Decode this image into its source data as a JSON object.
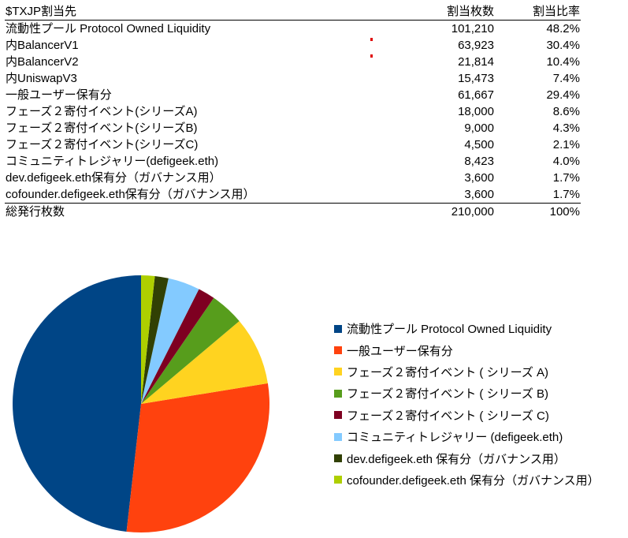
{
  "table": {
    "headers": {
      "name": "$TXJP割当先",
      "qty": "割当枚数",
      "pct": "割当比率"
    },
    "rows": [
      {
        "name": "流動性プール Protocol Owned Liquidity",
        "qty": "101,210",
        "pct": "48.2%",
        "sub": false
      },
      {
        "name": "内BalancerV1",
        "qty": "63,923",
        "pct": "30.4%",
        "sub": true
      },
      {
        "name": "内BalancerV2",
        "qty": "21,814",
        "pct": "10.4%",
        "sub": true
      },
      {
        "name": "内UniswapV3",
        "qty": "15,473",
        "pct": "7.4%",
        "sub": true
      },
      {
        "name": "一般ユーザー保有分",
        "qty": "61,667",
        "pct": "29.4%",
        "sub": false
      },
      {
        "name": "フェーズ２寄付イベント(シリーズA)",
        "qty": "18,000",
        "pct": "8.6%",
        "sub": false
      },
      {
        "name": "フェーズ２寄付イベント(シリーズB)",
        "qty": "9,000",
        "pct": "4.3%",
        "sub": false
      },
      {
        "name": "フェーズ２寄付イベント(シリーズC)",
        "qty": "4,500",
        "pct": "2.1%",
        "sub": false
      },
      {
        "name": "コミュニティトレジャリー(defigeek.eth)",
        "qty": "8,423",
        "pct": "4.0%",
        "sub": false
      },
      {
        "name": "dev.defigeek.eth保有分（ガバナンス用）",
        "qty": "3,600",
        "pct": "1.7%",
        "sub": false
      },
      {
        "name": "cofounder.defigeek.eth保有分（ガバナンス用）",
        "qty": "3,600",
        "pct": "1.7%",
        "sub": false
      }
    ],
    "total": {
      "name": "総発行枚数",
      "qty": "210,000",
      "pct": "100%"
    }
  },
  "chart_data": {
    "type": "pie",
    "title": "",
    "categories": [
      "流動性プール Protocol Owned Liquidity",
      "一般ユーザー保有分",
      "フェーズ２寄付イベント ( シリーズ A)",
      "フェーズ２寄付イベント ( シリーズ B)",
      "フェーズ２寄付イベント ( シリーズ C)",
      "コミュニティトレジャリー (defigeek.eth)",
      "dev.defigeek.eth 保有分（ガバナンス用）",
      "cofounder.defigeek.eth 保有分（ガバナンス用）"
    ],
    "values": [
      101210,
      61667,
      18000,
      9000,
      4500,
      8423,
      3600,
      3600
    ],
    "colors": [
      "#004586",
      "#ff420e",
      "#ffd320",
      "#579d1c",
      "#7e0021",
      "#83caff",
      "#314004",
      "#aecf00"
    ],
    "legend_position": "right"
  }
}
